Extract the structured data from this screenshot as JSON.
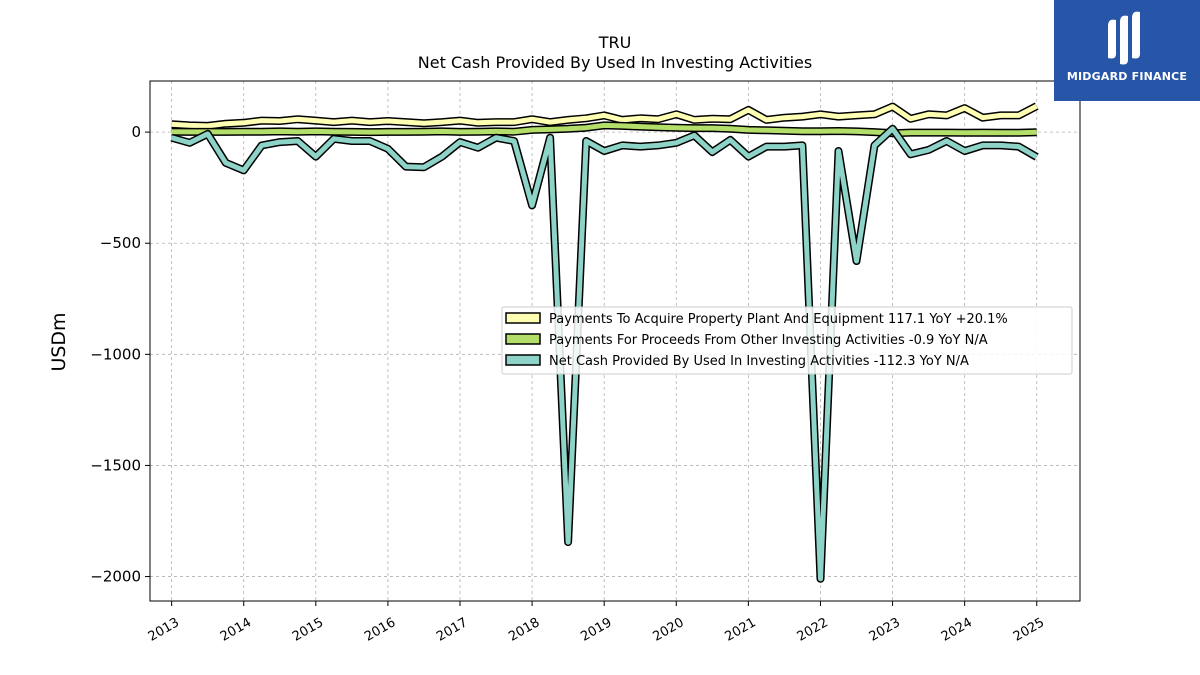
{
  "chart_data": {
    "type": "line",
    "title": "TRU",
    "subtitle": "Net Cash Provided By Used In Investing Activities",
    "xlabel": "",
    "ylabel": "USDm",
    "xlim": [
      2012.7,
      2025.6
    ],
    "ylim": [
      -2110,
      230
    ],
    "grid": true,
    "legend_position": "center-right",
    "x_ticks": [
      "2013",
      "2014",
      "2015",
      "2016",
      "2017",
      "2018",
      "2019",
      "2020",
      "2021",
      "2022",
      "2023",
      "2024",
      "2025"
    ],
    "y_ticks": [
      0,
      -500,
      -1000,
      -1500,
      -2000
    ],
    "y_tick_labels": [
      "0",
      "−500",
      "−1000",
      "−1500",
      "−2000"
    ],
    "x": [
      2013.0,
      2013.25,
      2013.5,
      2013.75,
      2014.0,
      2014.25,
      2014.5,
      2014.75,
      2015.0,
      2015.25,
      2015.5,
      2015.75,
      2016.0,
      2016.25,
      2016.5,
      2016.75,
      2017.0,
      2017.25,
      2017.5,
      2017.75,
      2018.0,
      2018.25,
      2018.5,
      2018.75,
      2019.0,
      2019.25,
      2019.5,
      2019.75,
      2020.0,
      2020.25,
      2020.5,
      2020.75,
      2021.0,
      2021.25,
      2021.5,
      2021.75,
      2022.0,
      2022.25,
      2022.5,
      2022.75,
      2023.0,
      2023.25,
      2023.5,
      2023.75,
      2024.0,
      2024.25,
      2024.5,
      2024.75,
      2025.0
    ],
    "series": [
      {
        "name": "Payments To Acquire Property Plant And Equipment  117.1 YoY +20.1%",
        "color": "#ffffb3",
        "values": [
          35,
          30,
          28,
          38,
          42,
          52,
          50,
          58,
          52,
          45,
          52,
          45,
          50,
          45,
          40,
          45,
          52,
          42,
          45,
          45,
          58,
          45,
          55,
          62,
          75,
          55,
          62,
          58,
          80,
          55,
          60,
          58,
          100,
          55,
          65,
          70,
          80,
          70,
          75,
          80,
          115,
          60,
          80,
          75,
          108,
          65,
          75,
          75,
          117
        ]
      },
      {
        "name": "Payments For Proceeds From Other Investing Activities  -0.9 YoY N/A",
        "color": "#b3de69",
        "values": [
          2,
          1,
          1,
          1,
          2,
          2,
          3,
          2,
          3,
          2,
          1,
          0,
          1,
          1,
          2,
          3,
          1,
          2,
          3,
          2,
          10,
          12,
          15,
          20,
          30,
          28,
          25,
          22,
          20,
          18,
          18,
          15,
          10,
          8,
          6,
          4,
          4,
          5,
          3,
          0,
          -5,
          -2,
          -2,
          -2,
          -3,
          -2,
          -3,
          -3,
          -1
        ]
      },
      {
        "name": "Net Cash Provided By Used In Investing Activities  -112.3 YoY N/A",
        "color": "#8dd3c7",
        "values": [
          -25,
          -48,
          -8,
          -138,
          -172,
          -60,
          -45,
          -40,
          -110,
          -30,
          -40,
          -40,
          -75,
          -155,
          -158,
          -110,
          -45,
          -70,
          -25,
          -40,
          -330,
          -25,
          -1845,
          -40,
          -85,
          -60,
          -65,
          -60,
          -48,
          -15,
          -90,
          -35,
          -110,
          -65,
          -65,
          -60,
          -2010,
          -85,
          -580,
          -60,
          15,
          -100,
          -80,
          -40,
          -85,
          -60,
          -60,
          -65,
          -112
        ]
      }
    ]
  },
  "branding": {
    "logo_text": "MIDGARD FINANCE",
    "logo_color": "#2756a8"
  }
}
